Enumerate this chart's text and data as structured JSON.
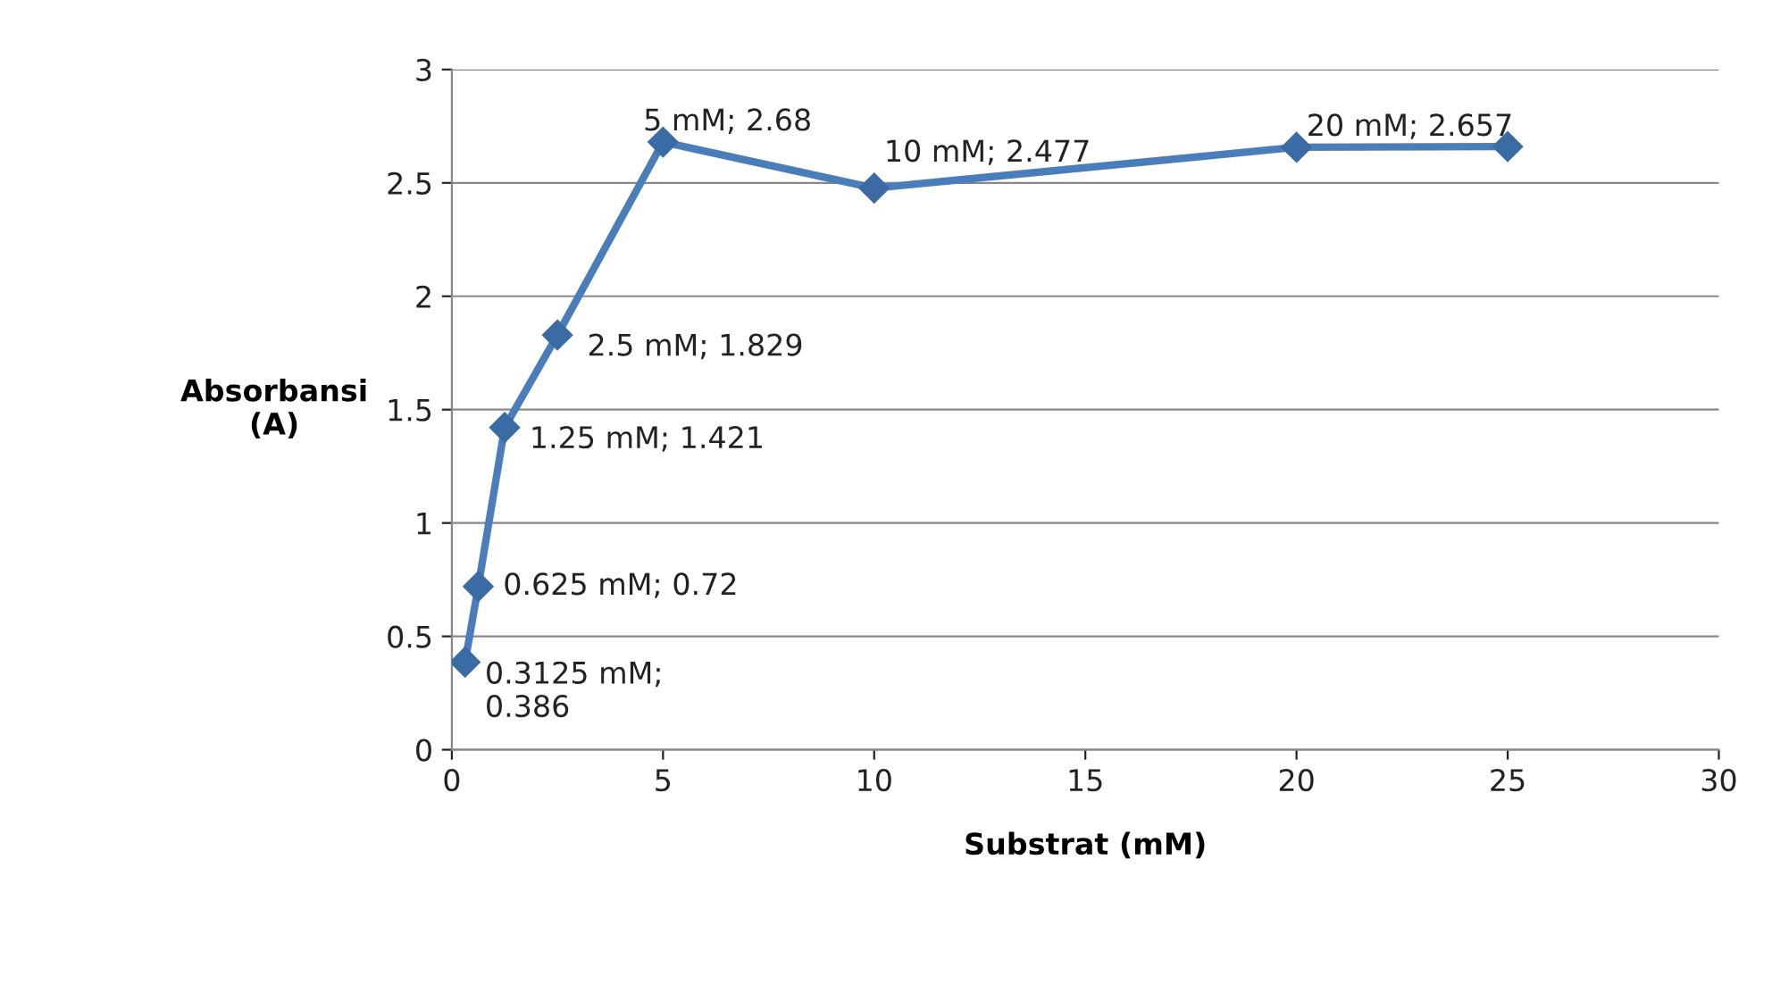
{
  "chart_data": {
    "type": "line",
    "xlabel": "Substrat (mM)",
    "ylabel": "Absorbansi\n(A)",
    "x": [
      0.3125,
      0.625,
      1.25,
      2.5,
      5,
      10,
      20,
      25
    ],
    "series": [
      {
        "color": "#4a7ebb",
        "values": [
          0.386,
          0.72,
          1.421,
          1.829,
          2.68,
          2.477,
          2.657,
          2.66
        ],
        "value_labels": [
          "0.3125 mM;\n0.386",
          "0.625 mM; 0.72",
          "1.25 mM; 1.421",
          "2.5 mM; 1.829",
          "5 mM; 2.68",
          "10 mM; 2.477",
          "20 mM; 2.657",
          null
        ]
      }
    ],
    "xlim": [
      0,
      30
    ],
    "xticks": [
      0,
      5,
      10,
      15,
      20,
      25,
      30
    ],
    "ylim": [
      0,
      3
    ],
    "yticks": [
      0,
      0.5,
      1,
      1.5,
      2,
      2.5,
      3
    ],
    "grid": "y",
    "marker": "diamond",
    "line_style": "solid",
    "legend": false
  }
}
